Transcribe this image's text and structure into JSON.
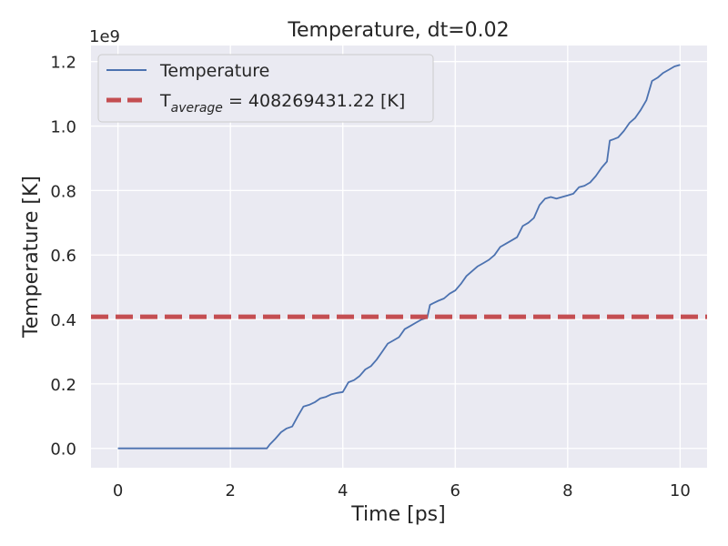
{
  "chart_data": {
    "type": "line",
    "title": "Temperature, dt=0.02",
    "xlabel": "Time [ps]",
    "ylabel": "Temperature [K]",
    "y_offset_label": "1e9",
    "xlim": [
      -0.48,
      10.48
    ],
    "ylim": [
      -0.06,
      1.25
    ],
    "y_scale_factor": 1000000000,
    "x_ticks": [
      0,
      2,
      4,
      6,
      8,
      10
    ],
    "x_tick_labels": [
      "0",
      "2",
      "4",
      "6",
      "8",
      "10"
    ],
    "y_ticks": [
      0,
      0.2,
      0.4,
      0.6,
      0.8,
      1.0,
      1.2
    ],
    "y_tick_labels": [
      "0.0",
      "0.2",
      "0.4",
      "0.6",
      "0.8",
      "1.0",
      "1.2"
    ],
    "grid": true,
    "legend_position": "top-left",
    "series": [
      {
        "name": "Temperature",
        "style": "solid",
        "color": "#4c72b0",
        "x": [
          0,
          0.5,
          1.0,
          1.5,
          2.0,
          2.5,
          2.65,
          2.7,
          2.8,
          2.9,
          3.0,
          3.1,
          3.2,
          3.3,
          3.4,
          3.5,
          3.6,
          3.7,
          3.8,
          3.9,
          4.0,
          4.1,
          4.2,
          4.3,
          4.4,
          4.5,
          4.6,
          4.7,
          4.8,
          4.9,
          5.0,
          5.1,
          5.2,
          5.3,
          5.4,
          5.5,
          5.55,
          5.6,
          5.7,
          5.8,
          5.9,
          6.0,
          6.1,
          6.2,
          6.3,
          6.4,
          6.5,
          6.6,
          6.7,
          6.8,
          6.9,
          7.0,
          7.1,
          7.2,
          7.3,
          7.4,
          7.5,
          7.6,
          7.7,
          7.8,
          7.9,
          8.0,
          8.1,
          8.2,
          8.3,
          8.4,
          8.5,
          8.6,
          8.7,
          8.75,
          8.8,
          8.9,
          9.0,
          9.1,
          9.2,
          9.3,
          9.4,
          9.5,
          9.6,
          9.7,
          9.8,
          9.9,
          10.0
        ],
        "y": [
          0,
          0,
          0,
          0,
          0,
          0,
          0.0,
          0.012,
          0.03,
          0.05,
          0.062,
          0.068,
          0.1,
          0.13,
          0.135,
          0.143,
          0.155,
          0.16,
          0.168,
          0.172,
          0.175,
          0.205,
          0.212,
          0.225,
          0.245,
          0.255,
          0.275,
          0.3,
          0.325,
          0.335,
          0.345,
          0.37,
          0.38,
          0.39,
          0.4,
          0.405,
          0.445,
          0.45,
          0.458,
          0.465,
          0.48,
          0.49,
          0.51,
          0.535,
          0.55,
          0.565,
          0.575,
          0.585,
          0.6,
          0.625,
          0.635,
          0.645,
          0.655,
          0.69,
          0.7,
          0.715,
          0.755,
          0.775,
          0.78,
          0.775,
          0.78,
          0.785,
          0.79,
          0.81,
          0.815,
          0.825,
          0.845,
          0.87,
          0.89,
          0.955,
          0.958,
          0.965,
          0.985,
          1.01,
          1.025,
          1.05,
          1.08,
          1.14,
          1.15,
          1.165,
          1.175,
          1.185,
          1.19
        ]
      },
      {
        "name": "T$_{average}$ = 408269431.22 [K]",
        "style": "dashed",
        "color": "#c44e52",
        "value": 0.40826943122
      }
    ],
    "legend": [
      {
        "text": "Temperature"
      },
      {
        "prefix": "T",
        "subscript": "average",
        "suffix": " = 408269431.22 [K]"
      }
    ]
  }
}
